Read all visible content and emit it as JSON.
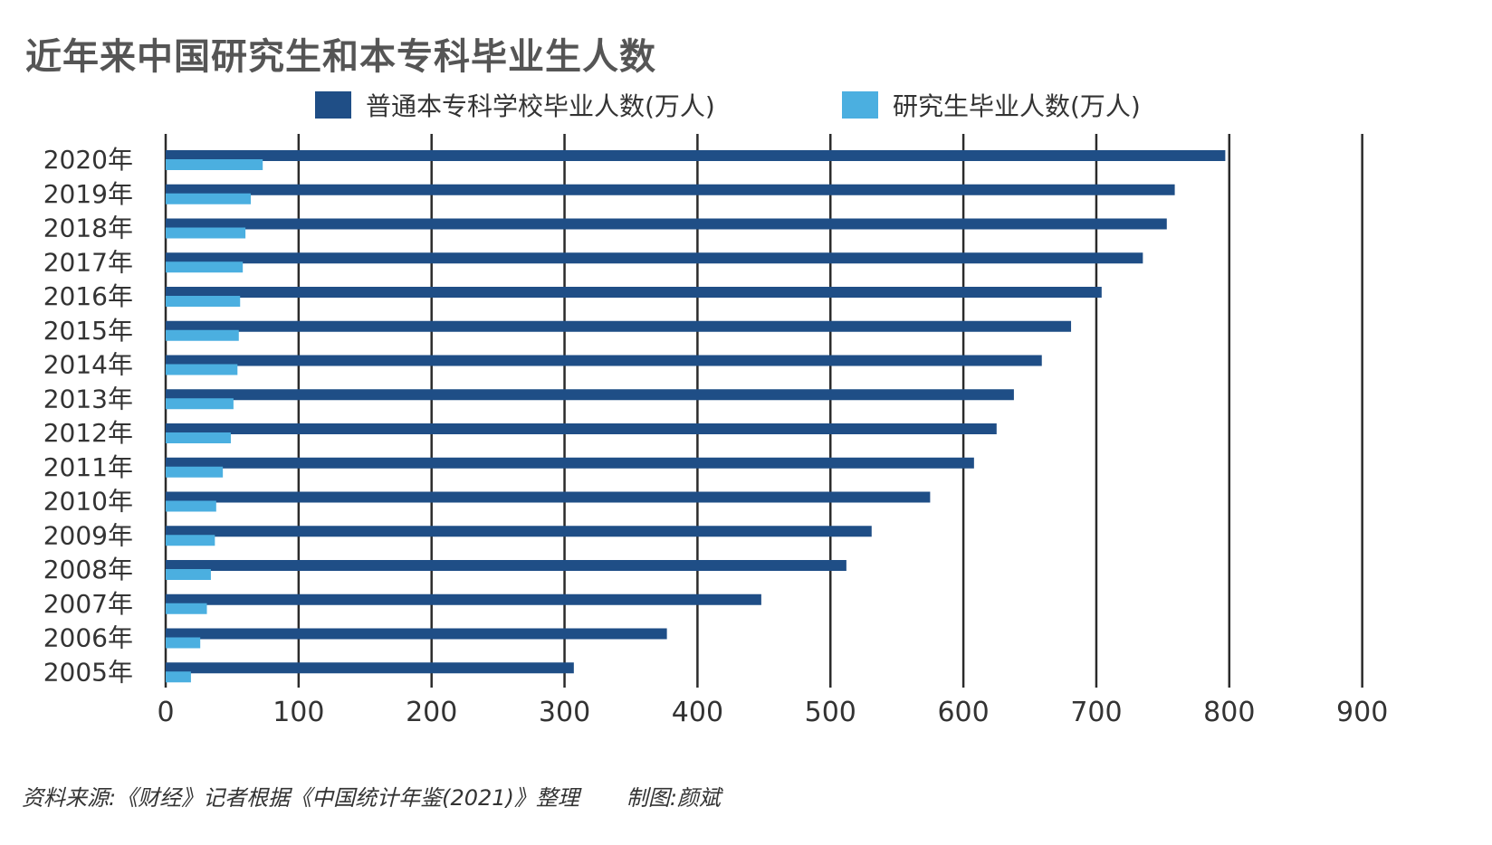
{
  "title": "近年来中国研究生和本专科毕业生人数",
  "legend": {
    "undergrad_label": "普通本专科学校毕业人数(万人)",
    "grad_label": "研究生毕业人数(万人)"
  },
  "colors": {
    "undergrad": "#1f4e86",
    "grad": "#4bafe0",
    "grid": "#2b2b2b"
  },
  "chart_data": {
    "type": "bar",
    "orientation": "horizontal",
    "categories": [
      "2020年",
      "2019年",
      "2018年",
      "2017年",
      "2016年",
      "2015年",
      "2014年",
      "2013年",
      "2012年",
      "2011年",
      "2010年",
      "2009年",
      "2008年",
      "2007年",
      "2006年",
      "2005年"
    ],
    "series": [
      {
        "name": "普通本专科学校毕业人数(万人)",
        "values": [
          797,
          759,
          753,
          735,
          704,
          681,
          659,
          638,
          625,
          608,
          575,
          531,
          512,
          448,
          377,
          307
        ]
      },
      {
        "name": "研究生毕业人数(万人)",
        "values": [
          73,
          64,
          60,
          58,
          56,
          55,
          54,
          51,
          49,
          43,
          38,
          37,
          34,
          31,
          26,
          19
        ]
      }
    ],
    "xticks": [
      0,
      100,
      200,
      300,
      400,
      500,
      600,
      700,
      800,
      900
    ],
    "xlim": [
      0,
      900
    ],
    "grid": true,
    "legend_position": "top"
  },
  "footer": {
    "source": "资料来源:《财经》记者根据《中国统计年鉴(2021)》整理",
    "credit": "制图:颜斌"
  }
}
